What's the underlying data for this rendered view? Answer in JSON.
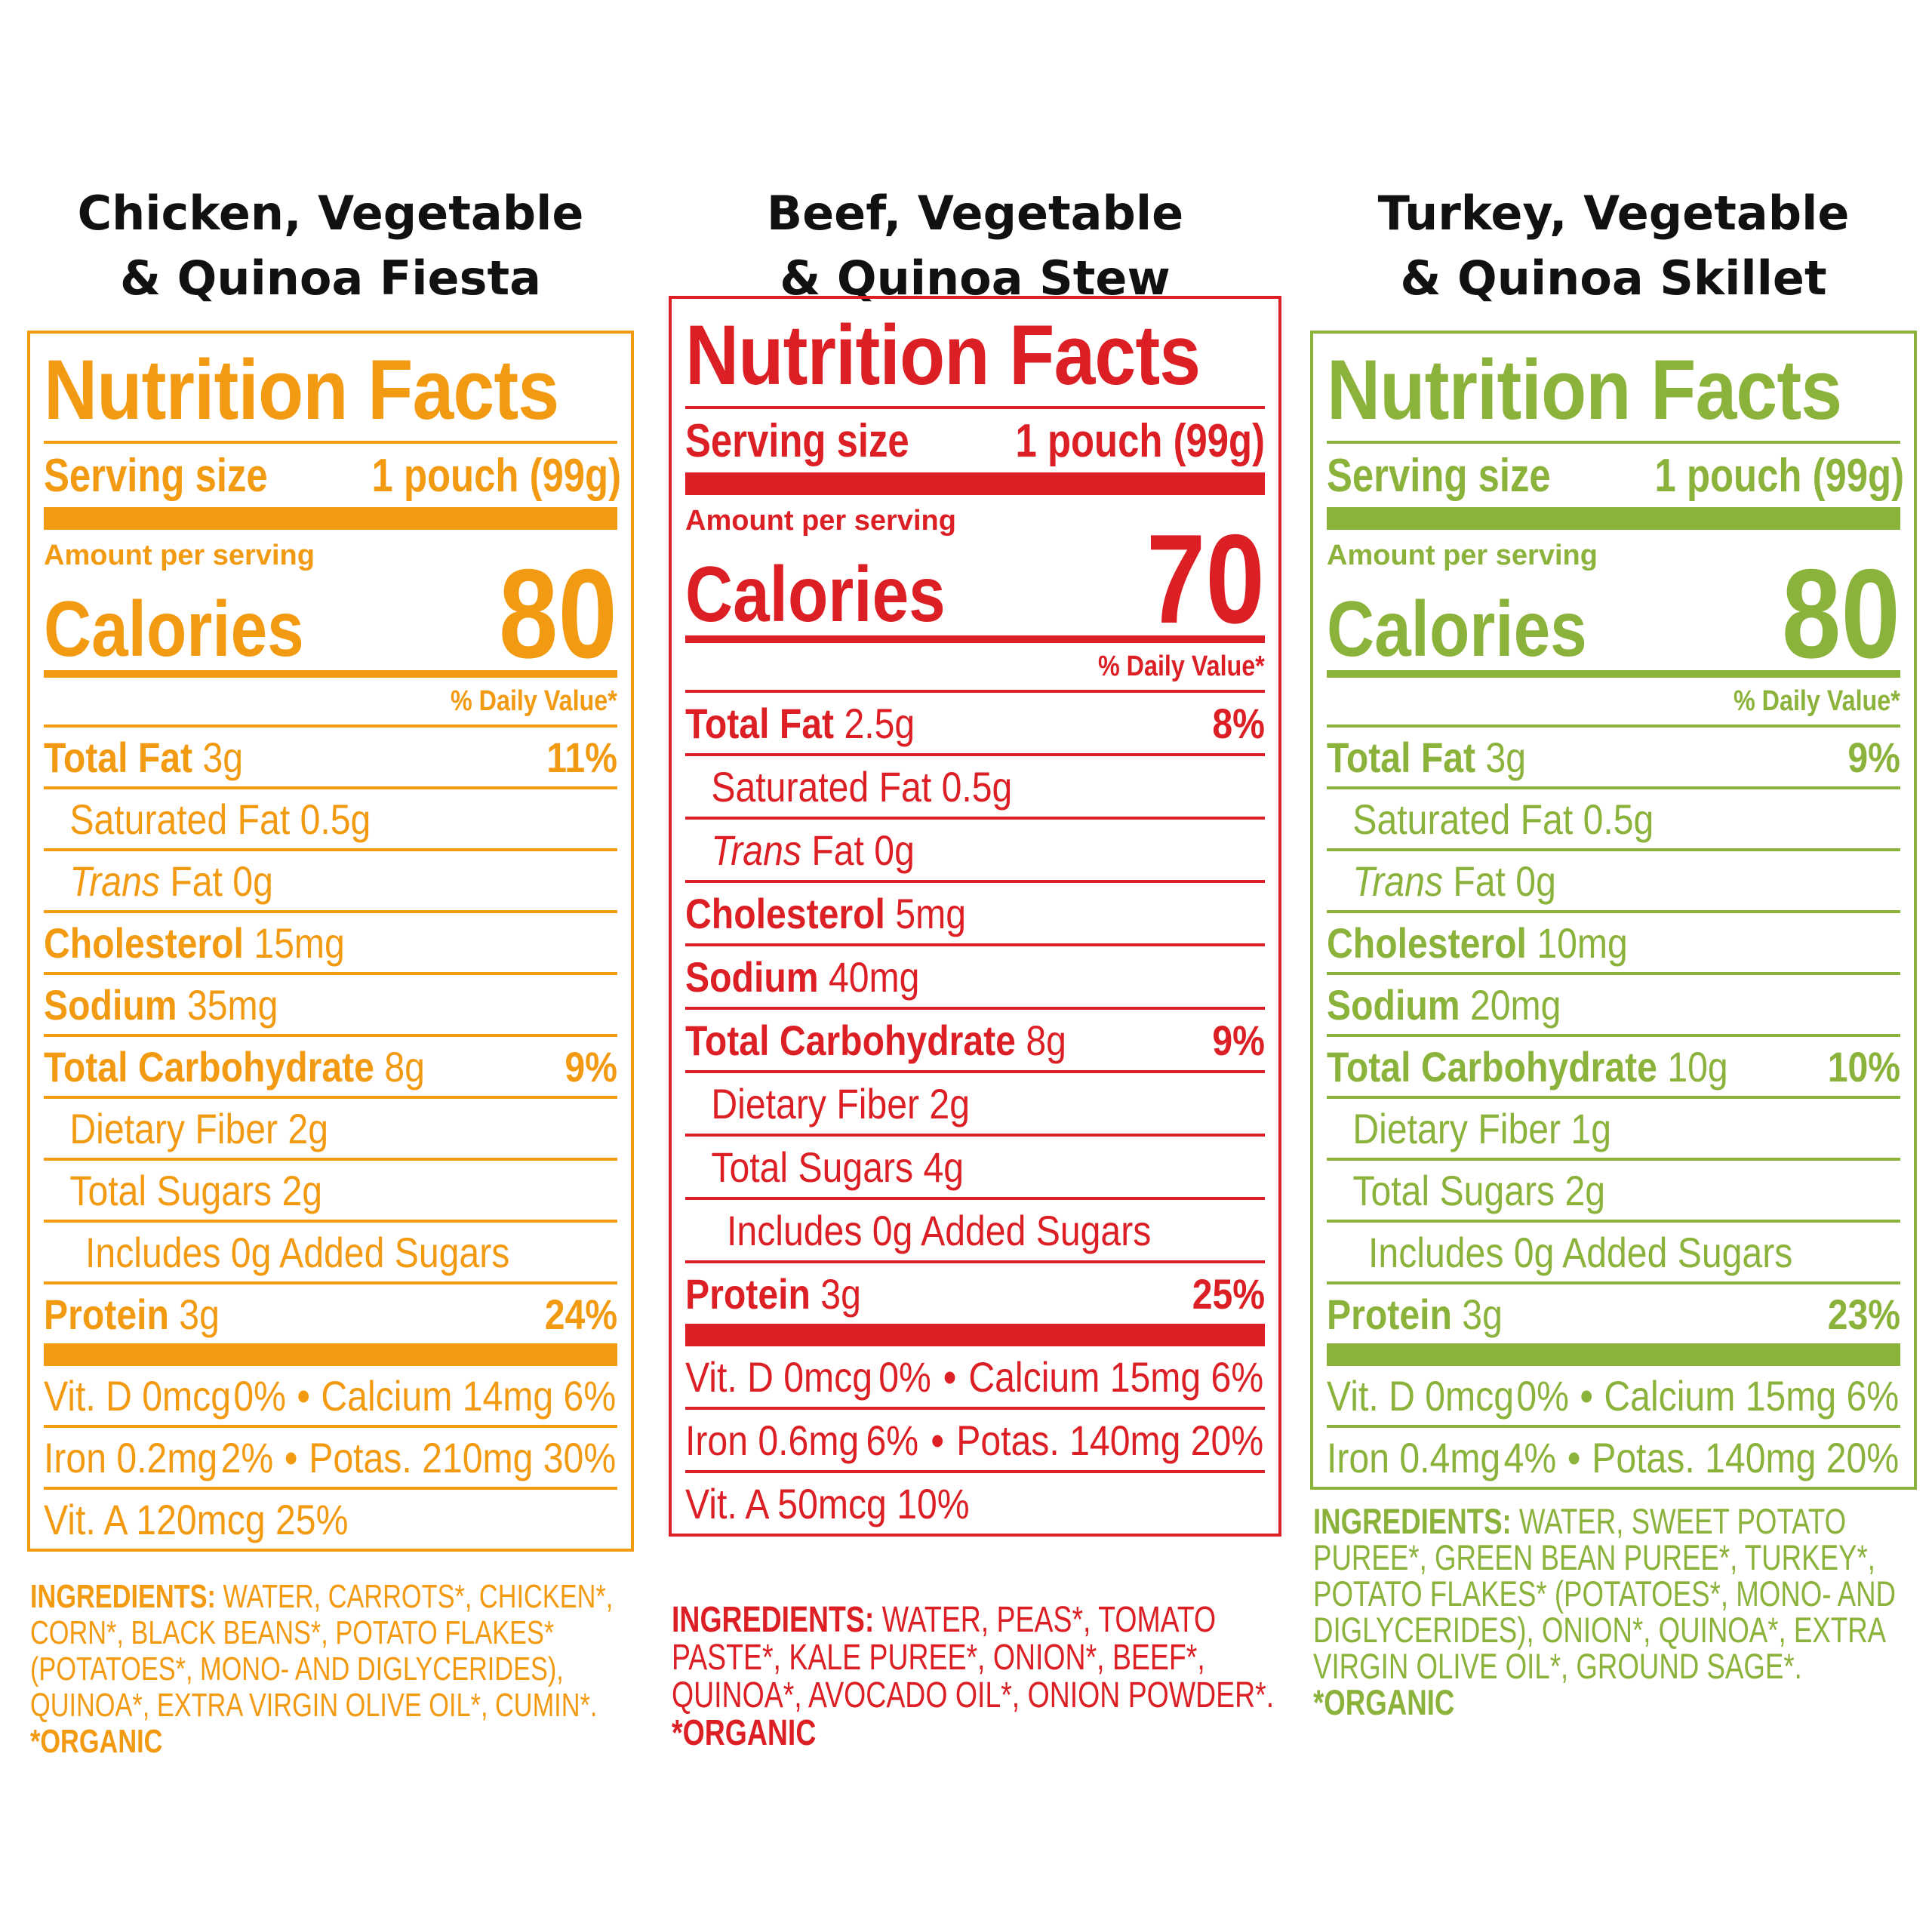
{
  "colors": {
    "orange": "#f29a12",
    "red": "#dc1f24",
    "green": "#8bb23b",
    "title": "#111111"
  },
  "products": [
    {
      "title_line1": "Chicken, Vegetable",
      "title_line2": "& Quinoa Fiesta",
      "nutrition_title": "Nutrition Facts",
      "serving_label": "Serving size",
      "serving_value": "1 pouch (99g)",
      "amount_label": "Amount per serving",
      "calories_label": "Calories",
      "calories_value": "80",
      "dv_header": "% Daily Value*",
      "total_fat_label": "Total Fat",
      "total_fat_amount": "3g",
      "total_fat_dv": "11%",
      "sat_fat": "Saturated Fat 0.5g",
      "trans_label": "Trans",
      "trans_rest": "Fat 0g",
      "cholesterol_label": "Cholesterol",
      "cholesterol_amount": "15mg",
      "sodium_label": "Sodium",
      "sodium_amount": "35mg",
      "carb_label": "Total Carbohydrate",
      "carb_amount": "8g",
      "carb_dv": "9%",
      "fiber": "Dietary Fiber 2g",
      "sugars": "Total Sugars 2g",
      "added_sugars": "Includes 0g Added Sugars",
      "protein_label": "Protein",
      "protein_amount": "3g",
      "protein_dv": "24%",
      "vitd": "Vit. D 0mcg",
      "vitd_dv": "0%",
      "calcium": "Calcium 14mg 6%",
      "iron": "Iron 0.2mg",
      "iron_dv": "2%",
      "potassium": "Potas. 210mg 30%",
      "vita": "Vit. A 120mcg 25%",
      "ingredients_label": "INGREDIENTS:",
      "ingredients_text": " WATER, CARROTS*, CHICKEN*, CORN*, BLACK BEANS*, POTATO FLAKES* (POTATOES*, MONO- AND DIGLYCERIDES), QUINOA*, EXTRA VIRGIN OLIVE OIL*, CUMIN*. ",
      "organic_note": "*ORGANIC"
    },
    {
      "title_line1": "Beef, Vegetable",
      "title_line2": "& Quinoa Stew",
      "nutrition_title": "Nutrition Facts",
      "serving_label": "Serving size",
      "serving_value": "1 pouch (99g)",
      "amount_label": "Amount per serving",
      "calories_label": "Calories",
      "calories_value": "70",
      "dv_header": "% Daily Value*",
      "total_fat_label": "Total Fat",
      "total_fat_amount": "2.5g",
      "total_fat_dv": "8%",
      "sat_fat": "Saturated Fat 0.5g",
      "trans_label": "Trans",
      "trans_rest": "Fat 0g",
      "cholesterol_label": "Cholesterol",
      "cholesterol_amount": "5mg",
      "sodium_label": "Sodium",
      "sodium_amount": "40mg",
      "carb_label": "Total Carbohydrate",
      "carb_amount": "8g",
      "carb_dv": "9%",
      "fiber": "Dietary Fiber 2g",
      "sugars": "Total Sugars 4g",
      "added_sugars": "Includes 0g Added Sugars",
      "protein_label": "Protein",
      "protein_amount": "3g",
      "protein_dv": "25%",
      "vitd": "Vit. D 0mcg",
      "vitd_dv": "0%",
      "calcium": "Calcium 15mg 6%",
      "iron": "Iron 0.6mg",
      "iron_dv": "6%",
      "potassium": "Potas. 140mg 20%",
      "vita": "Vit. A 50mcg 10%",
      "ingredients_label": "INGREDIENTS:",
      "ingredients_text": " WATER, PEAS*, TOMATO PASTE*, KALE PUREE*, ONION*, BEEF*, QUINOA*, AVOCADO OIL*, ONION POWDER*. ",
      "organic_note": "*ORGANIC"
    },
    {
      "title_line1": "Turkey, Vegetable",
      "title_line2": "& Quinoa Skillet",
      "nutrition_title": "Nutrition Facts",
      "serving_label": "Serving size",
      "serving_value": "1 pouch (99g)",
      "amount_label": "Amount per serving",
      "calories_label": "Calories",
      "calories_value": "80",
      "dv_header": "% Daily Value*",
      "total_fat_label": "Total Fat",
      "total_fat_amount": "3g",
      "total_fat_dv": "9%",
      "sat_fat": "Saturated Fat 0.5g",
      "trans_label": "Trans",
      "trans_rest": "Fat 0g",
      "cholesterol_label": "Cholesterol",
      "cholesterol_amount": "10mg",
      "sodium_label": "Sodium",
      "sodium_amount": "20mg",
      "carb_label": "Total Carbohydrate",
      "carb_amount": "10g",
      "carb_dv": "10%",
      "fiber": "Dietary Fiber 1g",
      "sugars": "Total Sugars 2g",
      "added_sugars": "Includes 0g Added Sugars",
      "protein_label": "Protein",
      "protein_amount": "3g",
      "protein_dv": "23%",
      "vitd": "Vit. D 0mcg",
      "vitd_dv": "0%",
      "calcium": "Calcium 15mg 6%",
      "iron": "Iron 0.4mg",
      "iron_dv": "4%",
      "potassium": "Potas. 140mg 20%",
      "ingredients_label": "INGREDIENTS:",
      "ingredients_text": " WATER, SWEET POTATO PUREE*, GREEN BEAN PUREE*, TURKEY*, POTATO FLAKES* (POTATOES*, MONO- AND DIGLYCERIDES), ONION*, QUINOA*, EXTRA VIRGIN OLIVE OIL*, GROUND SAGE*. ",
      "organic_note": "*ORGANIC"
    }
  ]
}
